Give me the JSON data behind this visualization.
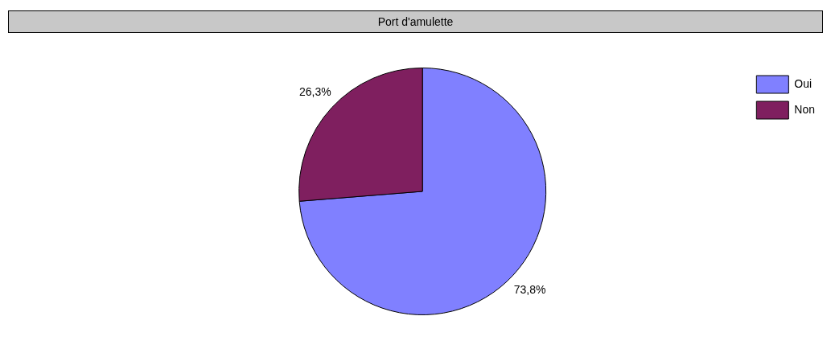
{
  "chart_data": {
    "type": "pie",
    "title": "Port d'amulette",
    "categories": [
      "Oui",
      "Non"
    ],
    "values": [
      73.8,
      26.3
    ],
    "colors": [
      "#8080ff",
      "#7f1f5f"
    ],
    "value_labels": [
      "73,8%",
      "26,3%"
    ],
    "legend": "top right"
  }
}
